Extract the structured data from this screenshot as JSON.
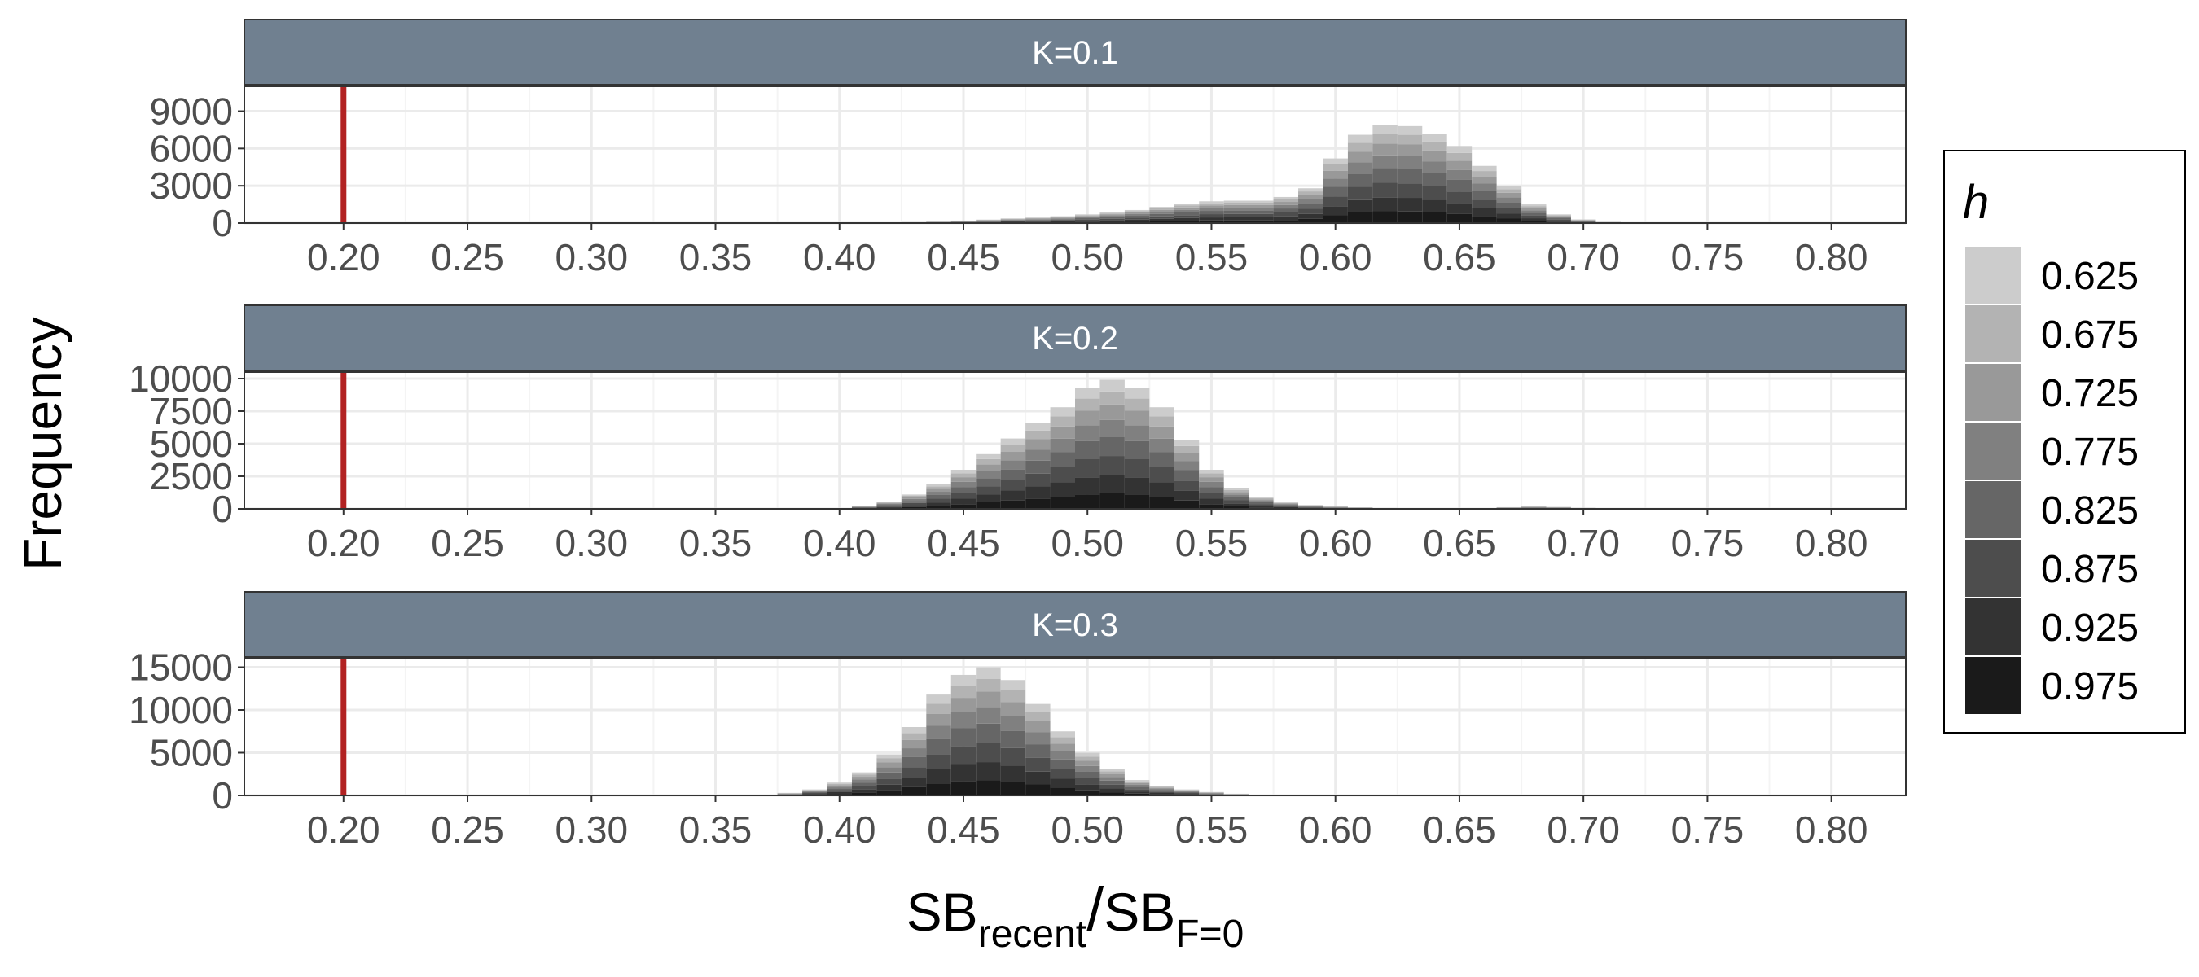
{
  "chart_data": {
    "type": "histogram",
    "stacked": true,
    "facets": [
      "K=0.1",
      "K=0.2",
      "K=0.3"
    ],
    "x_label": {
      "main": "SB",
      "sub1": "recent",
      "slash": "/",
      "main2": "SB",
      "sub2": "F=0"
    },
    "y_label": "Frequency",
    "x_ticks": [
      "0.20",
      "0.25",
      "0.30",
      "0.35",
      "0.40",
      "0.45",
      "0.50",
      "0.55",
      "0.60",
      "0.65",
      "0.70",
      "0.75",
      "0.80"
    ],
    "xlim": [
      0.16,
      0.83
    ],
    "reference_line": {
      "x": 0.2,
      "color": "#b22222"
    },
    "grid": true,
    "legend": {
      "title": "h",
      "position": "right",
      "entries": [
        "0.625",
        "0.675",
        "0.725",
        "0.775",
        "0.825",
        "0.875",
        "0.925",
        "0.975"
      ],
      "colors": [
        "#cccccc",
        "#b3b3b3",
        "#999999",
        "#808080",
        "#666666",
        "#4d4d4d",
        "#333333",
        "#1a1a1a"
      ]
    },
    "strip_color": "#708090",
    "panels": [
      {
        "facet": "K=0.1",
        "y_ticks": [
          "0",
          "3000",
          "6000",
          "9000"
        ],
        "y_tick_values": [
          0,
          3000,
          6000,
          9000
        ],
        "ylim": [
          0,
          11000
        ],
        "bin_width": 0.01,
        "bins": [
          0.43,
          0.44,
          0.45,
          0.46,
          0.47,
          0.48,
          0.49,
          0.5,
          0.51,
          0.52,
          0.53,
          0.54,
          0.55,
          0.56,
          0.57,
          0.58,
          0.59,
          0.6,
          0.61,
          0.62,
          0.63,
          0.64,
          0.65,
          0.66,
          0.67,
          0.68,
          0.69,
          0.7,
          0.71
        ],
        "totals": [
          80,
          120,
          200,
          280,
          380,
          450,
          550,
          700,
          850,
          1050,
          1300,
          1550,
          1750,
          1800,
          1800,
          2100,
          2800,
          5200,
          7100,
          7900,
          7800,
          7200,
          6200,
          4600,
          3000,
          1500,
          700,
          300,
          100
        ]
      },
      {
        "facet": "K=0.2",
        "y_ticks": [
          "0",
          "2500",
          "5000",
          "7500",
          "10000"
        ],
        "y_tick_values": [
          0,
          2500,
          5000,
          7500,
          10000
        ],
        "ylim": [
          0,
          10500
        ],
        "bin_width": 0.01,
        "bins": [
          0.41,
          0.42,
          0.43,
          0.44,
          0.45,
          0.46,
          0.47,
          0.48,
          0.49,
          0.5,
          0.51,
          0.52,
          0.53,
          0.54,
          0.55,
          0.56,
          0.57,
          0.58,
          0.59,
          0.6,
          0.61,
          0.62,
          0.66,
          0.67,
          0.68,
          0.69,
          0.7
        ],
        "totals": [
          250,
          550,
          1100,
          1900,
          3000,
          4200,
          5400,
          6600,
          7800,
          9300,
          9900,
          9300,
          7800,
          5300,
          3000,
          1600,
          900,
          500,
          300,
          200,
          120,
          70,
          60,
          130,
          200,
          150,
          80
        ]
      },
      {
        "facet": "K=0.3",
        "y_ticks": [
          "0",
          "5000",
          "10000",
          "15000"
        ],
        "y_tick_values": [
          0,
          5000,
          10000,
          15000
        ],
        "ylim": [
          0,
          16000
        ],
        "bin_width": 0.01,
        "bins": [
          0.38,
          0.39,
          0.4,
          0.41,
          0.42,
          0.43,
          0.44,
          0.45,
          0.46,
          0.47,
          0.48,
          0.49,
          0.5,
          0.51,
          0.52,
          0.53,
          0.54,
          0.55,
          0.56
        ],
        "totals": [
          300,
          700,
          1500,
          2700,
          4800,
          8000,
          11800,
          14100,
          15000,
          13500,
          10700,
          7500,
          5000,
          3100,
          1800,
          1100,
          700,
          400,
          200
        ]
      }
    ]
  }
}
